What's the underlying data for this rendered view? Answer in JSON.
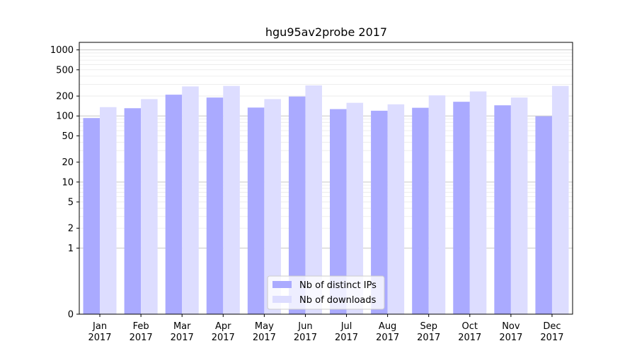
{
  "chart_data": {
    "type": "bar",
    "title": "hgu95av2probe 2017",
    "xlabel": "",
    "ylabel": "",
    "yscale": "symlog",
    "ylim": [
      0,
      1300
    ],
    "yticks": [
      0,
      1,
      2,
      5,
      10,
      20,
      50,
      100,
      200,
      500,
      1000
    ],
    "grid": true,
    "legend_position": "bottom-center",
    "categories": [
      [
        "Jan",
        "2017"
      ],
      [
        "Feb",
        "2017"
      ],
      [
        "Mar",
        "2017"
      ],
      [
        "Apr",
        "2017"
      ],
      [
        "May",
        "2017"
      ],
      [
        "Jun",
        "2017"
      ],
      [
        "Jul",
        "2017"
      ],
      [
        "Aug",
        "2017"
      ],
      [
        "Sep",
        "2017"
      ],
      [
        "Oct",
        "2017"
      ],
      [
        "Nov",
        "2017"
      ],
      [
        "Dec",
        "2017"
      ]
    ],
    "series": [
      {
        "name": "Nb of distinct IPs",
        "color": "#aaaaff",
        "values": [
          93,
          131,
          210,
          190,
          134,
          197,
          127,
          120,
          133,
          164,
          145,
          99
        ]
      },
      {
        "name": "Nb of downloads",
        "color": "#ddddff",
        "values": [
          136,
          180,
          280,
          285,
          180,
          290,
          158,
          150,
          205,
          235,
          190,
          285
        ]
      }
    ]
  }
}
